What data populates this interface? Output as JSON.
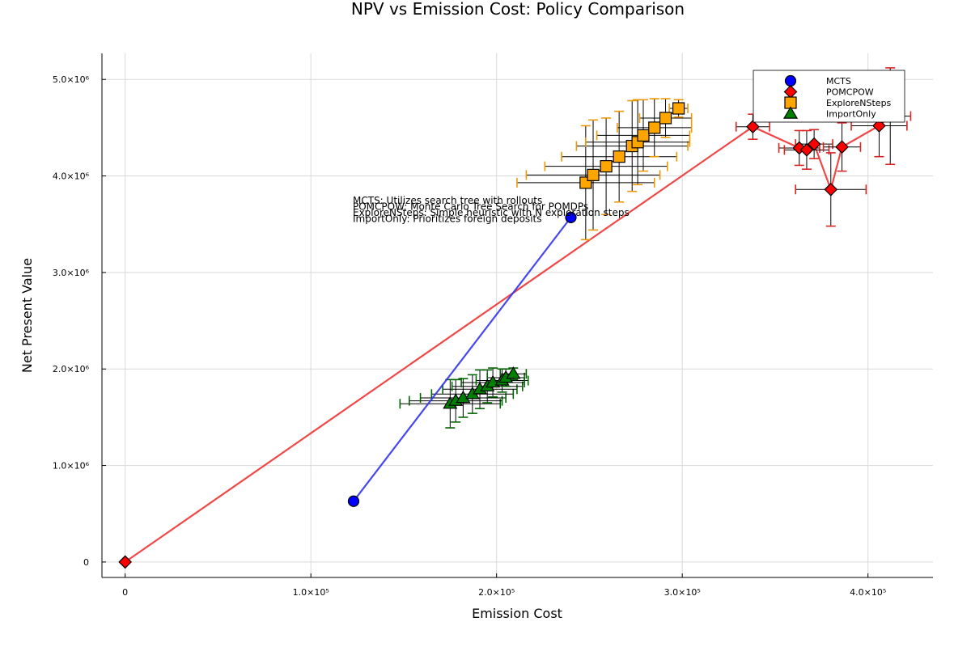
{
  "chart_data": {
    "type": "scatter",
    "title": "NPV vs Emission Cost: Policy Comparison",
    "xlabel": "Emission Cost",
    "ylabel": "Net Present Value",
    "xlim": [
      -12500,
      435000
    ],
    "ylim": [
      -160000,
      5270000
    ],
    "x_ticks": [
      {
        "value": 0,
        "label": "0"
      },
      {
        "value": 100000,
        "label": "1.0×10⁵"
      },
      {
        "value": 200000,
        "label": "2.0×10⁵"
      },
      {
        "value": 300000,
        "label": "3.0×10⁵"
      },
      {
        "value": 400000,
        "label": "4.0×10⁵"
      }
    ],
    "y_ticks": [
      {
        "value": 0,
        "label": "0"
      },
      {
        "value": 1000000,
        "label": "1.0×10⁶"
      },
      {
        "value": 2000000,
        "label": "2.0×10⁶"
      },
      {
        "value": 3000000,
        "label": "3.0×10⁶"
      },
      {
        "value": 4000000,
        "label": "4.0×10⁶"
      },
      {
        "value": 5000000,
        "label": "5.0×10⁶"
      }
    ],
    "grid": true,
    "legend_position": "top-right",
    "series": [
      {
        "name": "MCTS",
        "marker": "circle",
        "color": "#0000ff",
        "line_color": "#3333ee",
        "error_color": "#000000",
        "points": [
          {
            "x": 123000,
            "y": 630000
          },
          {
            "x": 240000,
            "y": 3570000
          }
        ]
      },
      {
        "name": "POMCPOW",
        "marker": "diamond",
        "color": "#ff0000",
        "line_color": "#ee3333",
        "error_color": "#dd2222",
        "points": [
          {
            "x": 0,
            "y": 0
          },
          {
            "x": 338000,
            "y": 4510000,
            "xerr": 9000,
            "yerr": 130000
          },
          {
            "x": 363000,
            "y": 4290000,
            "xerr": 11000,
            "yerr": 180000
          },
          {
            "x": 367000,
            "y": 4270000,
            "xerr": 12000,
            "yerr": 200000
          },
          {
            "x": 371000,
            "y": 4330000,
            "xerr": 10000,
            "yerr": 150000
          },
          {
            "x": 380000,
            "y": 3860000,
            "xerr": 19000,
            "yerr": 380000
          },
          {
            "x": 386000,
            "y": 4300000,
            "xerr": 10000,
            "yerr": 250000
          },
          {
            "x": 406000,
            "y": 4520000,
            "xerr": 15000,
            "yerr": 320000
          },
          {
            "x": 412000,
            "y": 4620000,
            "xerr": 11000,
            "yerr": 500000
          }
        ]
      },
      {
        "name": "ExploreNSteps",
        "marker": "square",
        "color": "#ffa500",
        "line_color": "#000000",
        "error_color": "#ee9900",
        "points": [
          {
            "x": 248000,
            "y": 3930000,
            "xerr": 37000,
            "yerr": 590000
          },
          {
            "x": 252000,
            "y": 4010000,
            "xerr": 36000,
            "yerr": 570000
          },
          {
            "x": 259000,
            "y": 4100000,
            "xerr": 33000,
            "yerr": 500000
          },
          {
            "x": 266000,
            "y": 4200000,
            "xerr": 31000,
            "yerr": 470000
          },
          {
            "x": 273000,
            "y": 4310000,
            "xerr": 30000,
            "yerr": 470000
          },
          {
            "x": 276000,
            "y": 4350000,
            "xerr": 28000,
            "yerr": 440000
          },
          {
            "x": 279000,
            "y": 4420000,
            "xerr": 25000,
            "yerr": 370000
          },
          {
            "x": 285000,
            "y": 4500000,
            "xerr": 20000,
            "yerr": 300000
          },
          {
            "x": 291000,
            "y": 4600000,
            "xerr": 14000,
            "yerr": 200000
          },
          {
            "x": 298000,
            "y": 4700000,
            "xerr": 5000,
            "yerr": 90000
          }
        ]
      },
      {
        "name": "ImportOnly",
        "marker": "triangle",
        "color": "#008000",
        "line_color": "#000000",
        "error_color": "#006400",
        "points": [
          {
            "x": 175000,
            "y": 1640000,
            "xerr": 27000,
            "yerr": 250000
          },
          {
            "x": 178000,
            "y": 1670000,
            "xerr": 25000,
            "yerr": 220000
          },
          {
            "x": 182000,
            "y": 1700000,
            "xerr": 23000,
            "yerr": 200000
          },
          {
            "x": 187000,
            "y": 1740000,
            "xerr": 22000,
            "yerr": 200000
          },
          {
            "x": 191000,
            "y": 1790000,
            "xerr": 20000,
            "yerr": 200000
          },
          {
            "x": 195000,
            "y": 1820000,
            "xerr": 19000,
            "yerr": 170000
          },
          {
            "x": 198000,
            "y": 1860000,
            "xerr": 17000,
            "yerr": 150000
          },
          {
            "x": 203000,
            "y": 1880000,
            "xerr": 14000,
            "yerr": 120000
          },
          {
            "x": 205000,
            "y": 1910000,
            "xerr": 10000,
            "yerr": 90000
          },
          {
            "x": 209000,
            "y": 1950000,
            "xerr": 7000,
            "yerr": 60000
          }
        ]
      }
    ],
    "annotations": [
      "MCTS: Utilizes search tree with rollouts",
      "POMCPOW: Monte Carlo Tree Search for POMDPs",
      "ExploreNSteps: Simple heuristic with N exploration steps",
      "ImportOnly: Prioritizes foreign deposits"
    ]
  }
}
